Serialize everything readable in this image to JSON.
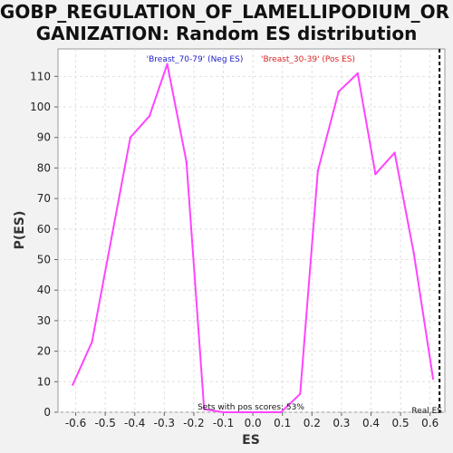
{
  "chart_data": {
    "type": "line",
    "title_line1": "GOBP_REGULATION_OF_LAMELLIPODIUM_OR",
    "title_line2": "GANIZATION: Random ES distribution",
    "xlabel": "ES",
    "ylabel": "P(ES)",
    "xlim": [
      -0.66,
      0.65
    ],
    "ylim": [
      0,
      119
    ],
    "xticks": [
      "-0.6",
      "-0.5",
      "-0.4",
      "-0.3",
      "-0.2",
      "-0.1",
      "0.0",
      "0.1",
      "0.2",
      "0.3",
      "0.4",
      "0.5",
      "0.6"
    ],
    "yticks": [
      "0",
      "10",
      "20",
      "30",
      "40",
      "50",
      "60",
      "70",
      "80",
      "90",
      "100",
      "110"
    ],
    "grid": true,
    "neg_label": "'Breast_70-79' (Neg ES)",
    "pos_label": "'Breast_30-39' (Pos ES)",
    "pos_scores_text": "Sets with pos scores: 53%",
    "real_es_label": "Real ES",
    "real_es": 0.632,
    "colors": {
      "line": "#ff44ff",
      "neg": "#2222cc",
      "pos": "#dd2222",
      "grid": "#e0e0e0"
    },
    "series": [
      {
        "x": [
          -0.61,
          -0.545,
          -0.415,
          -0.35,
          -0.29,
          -0.225,
          -0.165,
          -0.1,
          -0.035,
          0.03,
          0.095,
          0.16,
          0.22,
          0.29,
          0.355,
          0.415,
          0.48,
          0.545,
          0.61
        ],
        "y": [
          9,
          23,
          90,
          97,
          114,
          82,
          1,
          0,
          0,
          0,
          0,
          6,
          79,
          105,
          111,
          78,
          85,
          52,
          11
        ]
      }
    ]
  }
}
